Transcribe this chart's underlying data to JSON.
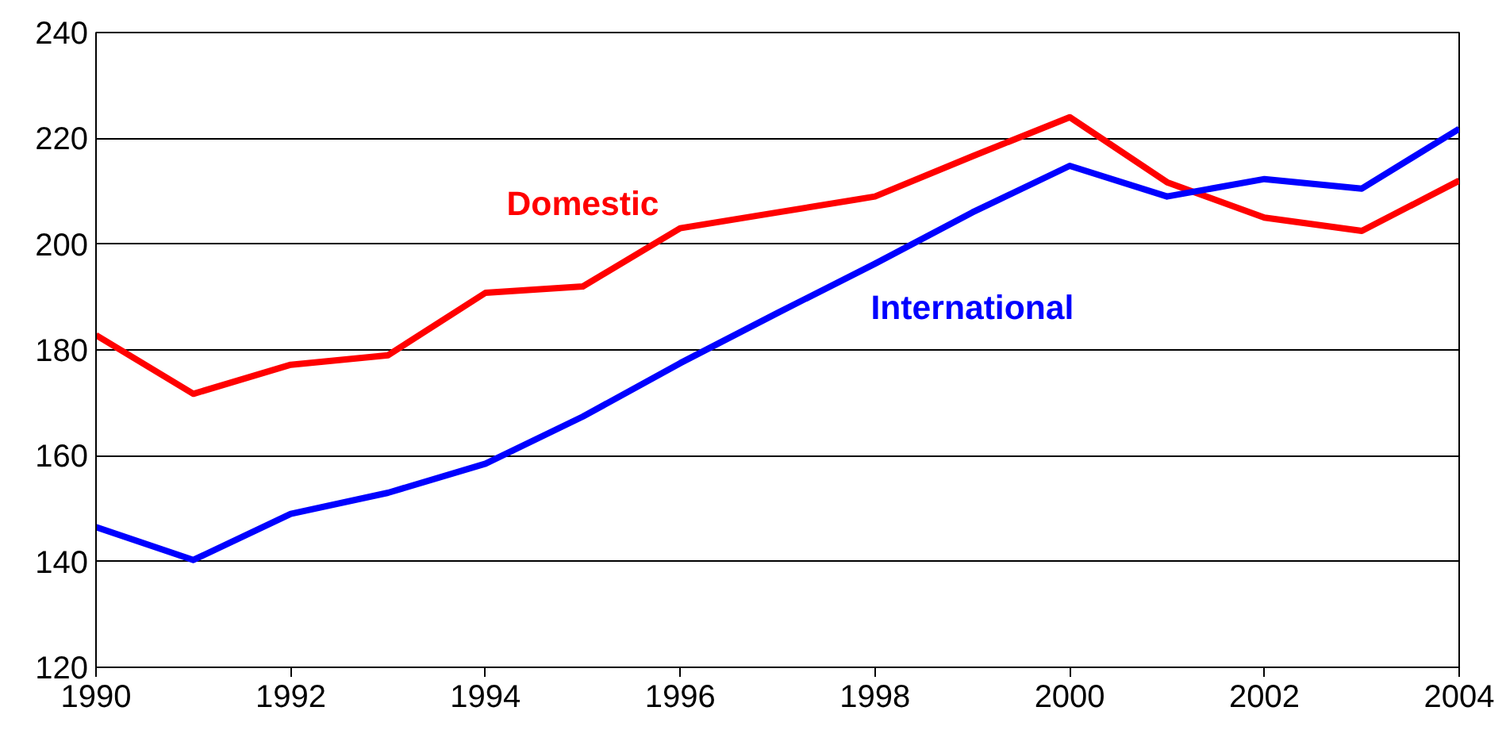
{
  "chart_data": {
    "type": "line",
    "x": [
      1990,
      1991,
      1992,
      1993,
      1994,
      1995,
      1996,
      1997,
      1998,
      1999,
      2000,
      2001,
      2002,
      2003,
      2004
    ],
    "series": [
      {
        "name": "Domestic",
        "color": "#ff0000",
        "values": [
          182.8,
          171.7,
          177.2,
          179,
          190.8,
          192,
          203,
          206,
          209,
          216.6,
          224,
          211.7,
          205,
          202.5,
          212
        ]
      },
      {
        "name": "International",
        "color": "#0000ff",
        "values": [
          146.5,
          140.3,
          149,
          153,
          158.5,
          167.4,
          177.5,
          187,
          196.3,
          206,
          214.8,
          209,
          212.3,
          210.5,
          221.8
        ]
      }
    ],
    "xlim": [
      1990,
      2004
    ],
    "xticks": [
      1990,
      1992,
      1994,
      1996,
      1998,
      2000,
      2002,
      2004
    ],
    "ylim": [
      120,
      240
    ],
    "yticks": [
      120,
      140,
      160,
      180,
      200,
      220,
      240
    ],
    "grid": "y",
    "legend": false,
    "line_style": "solid",
    "marker": "none"
  }
}
